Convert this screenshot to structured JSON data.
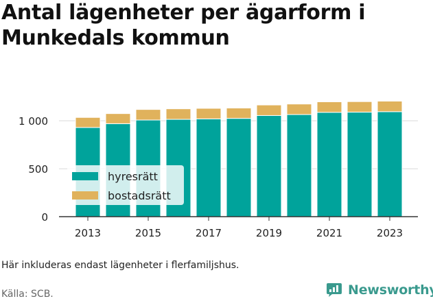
{
  "title": "Antal lägenheter per ägarform i Munkedals kommun",
  "note": "Här inkluderas endast lägenheter i flerfamiljshus.",
  "source": "Källa: SCB.",
  "logo": {
    "text": "Newsworthy",
    "icon": "newsworthy-logo-icon"
  },
  "colors": {
    "hyresratt": "#00a39b",
    "bostadsratt": "#e0b25c",
    "grid": "#d9d9d9",
    "axis": "#333333",
    "brand": "#3a9a8e"
  },
  "chart_data": {
    "type": "bar",
    "stacked": true,
    "categories": [
      "2013",
      "2014",
      "2015",
      "2016",
      "2017",
      "2018",
      "2019",
      "2020",
      "2021",
      "2022",
      "2023"
    ],
    "series": [
      {
        "name": "hyresrätt",
        "values": [
          930,
          970,
          1008,
          1015,
          1020,
          1025,
          1055,
          1065,
          1088,
          1090,
          1095
        ]
      },
      {
        "name": "bostadsrätt",
        "values": [
          105,
          105,
          110,
          110,
          110,
          108,
          110,
          110,
          110,
          110,
          110
        ]
      }
    ],
    "x_tick_labels": [
      "2013",
      "2015",
      "2017",
      "2019",
      "2021",
      "2023"
    ],
    "y_ticks": [
      0,
      500,
      1000
    ],
    "y_tick_labels": [
      "0",
      "500",
      "1 000"
    ],
    "ylim": [
      0,
      1330
    ],
    "grid": true,
    "legend_position": "left-middle",
    "title": "Antal lägenheter per ägarform i Munkedals kommun",
    "xlabel": "",
    "ylabel": ""
  }
}
